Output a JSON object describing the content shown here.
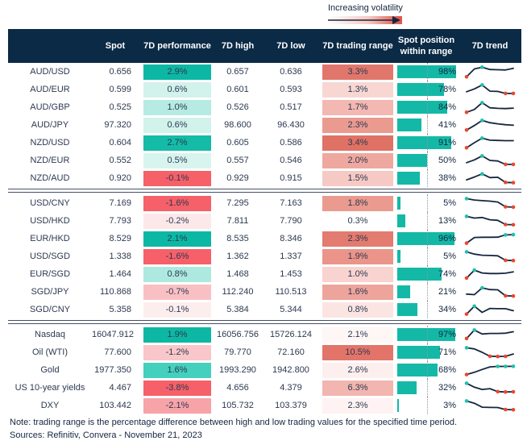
{
  "volatility": {
    "label": "Increasing volatility"
  },
  "footer": {
    "note": "Note: trading range is the percentage difference between high and low trading values for the specified time period.",
    "sources": "Sources: Refinitiv, Convera - November 21, 2023"
  },
  "colors": {
    "header_bg": "#0b2a45",
    "bar_teal": "#13b9a6",
    "line_navy": "#15263f",
    "dot_teal": "#1fc0ab",
    "dot_red": "#e8472f"
  },
  "chart_data": {
    "type": "table",
    "columns": {
      "label": "",
      "spot": "Spot",
      "perf": "7D performance",
      "high": "7D high",
      "low": "7D low",
      "range": "7D trading range",
      "position": "Spot position within range",
      "trend": "7D trend"
    },
    "groups": [
      {
        "rows": [
          {
            "label": "AUD/USD",
            "spot": "0.656",
            "perf": "2.9%",
            "perf_color": "#0cb8a4",
            "high": "0.657",
            "low": "0.636",
            "range": "3.3%",
            "range_color": "#e1776c",
            "position": "98%",
            "spark": [
              5,
              75,
              90,
              70,
              68,
              66,
              80
            ]
          },
          {
            "label": "AUD/EUR",
            "spot": "0.599",
            "perf": "0.6%",
            "perf_color": "#d2f2ec",
            "high": "0.601",
            "low": "0.593",
            "range": "1.3%",
            "range_color": "#f8d7d3",
            "position": "78%",
            "spark": [
              30,
              55,
              90,
              35,
              33,
              15,
              15
            ]
          },
          {
            "label": "AUD/GBP",
            "spot": "0.525",
            "perf": "1.0%",
            "perf_color": "#b5ebe2",
            "high": "0.526",
            "low": "0.517",
            "range": "1.7%",
            "range_color": "#f2b8b1",
            "position": "84%",
            "spark": [
              5,
              30,
              90,
              45,
              40,
              38,
              42
            ]
          },
          {
            "label": "AUD/JPY",
            "spot": "97.320",
            "perf": "0.6%",
            "perf_color": "#d2f2ec",
            "high": "98.600",
            "low": "96.430",
            "range": "2.3%",
            "range_color": "#eb9a90",
            "position": "41%",
            "spark": [
              5,
              45,
              90,
              70,
              60,
              52,
              48
            ]
          },
          {
            "label": "NZD/USD",
            "spot": "0.604",
            "perf": "2.7%",
            "perf_color": "#14bba7",
            "high": "0.605",
            "low": "0.586",
            "range": "3.4%",
            "range_color": "#e07165",
            "position": "91%",
            "spark": [
              5,
              50,
              90,
              72,
              70,
              68,
              68
            ]
          },
          {
            "label": "NZD/EUR",
            "spot": "0.552",
            "perf": "0.5%",
            "perf_color": "#d8f4ef",
            "high": "0.557",
            "low": "0.546",
            "range": "2.0%",
            "range_color": "#efa89f",
            "position": "50%",
            "spark": [
              30,
              55,
              90,
              50,
              45,
              15,
              15
            ]
          },
          {
            "label": "NZD/AUD",
            "spot": "0.920",
            "perf": "-0.1%",
            "perf_color": "#f56069",
            "high": "0.929",
            "low": "0.915",
            "range": "1.5%",
            "range_color": "#f6c9c4",
            "position": "38%",
            "spark": [
              35,
              60,
              88,
              55,
              58,
              12,
              10
            ]
          }
        ]
      },
      {
        "rows": [
          {
            "label": "USD/CNY",
            "spot": "7.169",
            "perf": "-1.6%",
            "perf_color": "#f56069",
            "high": "7.295",
            "low": "7.163",
            "range": "1.8%",
            "range_color": "#eb9a90",
            "position": "5%",
            "spark": [
              90,
              78,
              72,
              68,
              60,
              18,
              15
            ]
          },
          {
            "label": "USD/HKD",
            "spot": "7.793",
            "perf": "-0.2%",
            "perf_color": "#fce8e9",
            "high": "7.811",
            "low": "7.790",
            "range": "0.3%",
            "range_color": "#ffffff",
            "position": "13%",
            "spark": [
              90,
              75,
              80,
              60,
              55,
              18,
              16
            ]
          },
          {
            "label": "EUR/HKD",
            "spot": "8.529",
            "perf": "2.1%",
            "perf_color": "#0cb8a4",
            "high": "8.535",
            "low": "8.346",
            "range": "2.3%",
            "range_color": "#e37b70",
            "position": "96%",
            "spark": [
              10,
              60,
              62,
              62,
              63,
              83,
              85
            ]
          },
          {
            "label": "USD/SGD",
            "spot": "1.338",
            "perf": "-1.6%",
            "perf_color": "#f56069",
            "high": "1.362",
            "low": "1.337",
            "range": "1.9%",
            "range_color": "#ea948a",
            "position": "5%",
            "spark": [
              90,
              70,
              60,
              58,
              55,
              15,
              13
            ]
          },
          {
            "label": "EUR/SGD",
            "spot": "1.464",
            "perf": "0.8%",
            "perf_color": "#aee9e0",
            "high": "1.468",
            "low": "1.453",
            "range": "1.0%",
            "range_color": "#f8d3cf",
            "position": "74%",
            "spark": [
              15,
              85,
              60,
              55,
              55,
              58,
              70
            ]
          },
          {
            "label": "SGD/JPY",
            "spot": "110.868",
            "perf": "-0.7%",
            "perf_color": "#f9c0c3",
            "high": "112.240",
            "low": "110.513",
            "range": "1.6%",
            "range_color": "#eda49b",
            "position": "21%",
            "spark": [
              30,
              25,
              85,
              70,
              68,
              15,
              13
            ]
          },
          {
            "label": "SGD/CNY",
            "spot": "5.358",
            "perf": "-0.1%",
            "perf_color": "#fdeeee",
            "high": "5.384",
            "low": "5.344",
            "range": "0.8%",
            "range_color": "#fbe5e3",
            "position": "34%",
            "spark": [
              10,
              80,
              25,
              60,
              58,
              58,
              40
            ]
          }
        ]
      },
      {
        "rows": [
          {
            "label": "Nasdaq",
            "spot": "16047.912",
            "perf": "1.9%",
            "perf_color": "#0cb8a4",
            "high": "16056.756",
            "low": "15726.124",
            "range": "2.1%",
            "range_color": "#fef7f6",
            "position": "97%",
            "spark": [
              15,
              90,
              55,
              60,
              60,
              62,
              75
            ]
          },
          {
            "label": "Oil (WTI)",
            "spot": "77.600",
            "perf": "-1.2%",
            "perf_color": "#f9c6c9",
            "high": "79.770",
            "low": "72.160",
            "range": "10.5%",
            "range_color": "#e3746a",
            "position": "71%",
            "spark": [
              90,
              80,
              50,
              15,
              13,
              14,
              35
            ]
          },
          {
            "label": "Gold",
            "spot": "1977.350",
            "perf": "1.6%",
            "perf_color": "#43d0bc",
            "high": "1993.290",
            "low": "1942.800",
            "range": "2.6%",
            "range_color": "#fdefee",
            "position": "68%",
            "spark": [
              10,
              30,
              55,
              78,
              82,
              82,
              83
            ]
          },
          {
            "label": "US 10-year yields",
            "spot": "4.467",
            "perf": "-3.8%",
            "perf_color": "#f56069",
            "high": "4.656",
            "low": "4.379",
            "range": "6.3%",
            "range_color": "#f2b5af",
            "position": "32%",
            "spark": [
              90,
              55,
              35,
              42,
              16,
              13,
              14
            ]
          },
          {
            "label": "DXY",
            "spot": "103.442",
            "perf": "-2.1%",
            "perf_color": "#f7a3a8",
            "high": "105.732",
            "low": "103.379",
            "range": "2.3%",
            "range_color": "#fef3f2",
            "position": "3%",
            "spark": [
              90,
              70,
              35,
              33,
              32,
              14,
              12
            ]
          }
        ]
      }
    ]
  }
}
